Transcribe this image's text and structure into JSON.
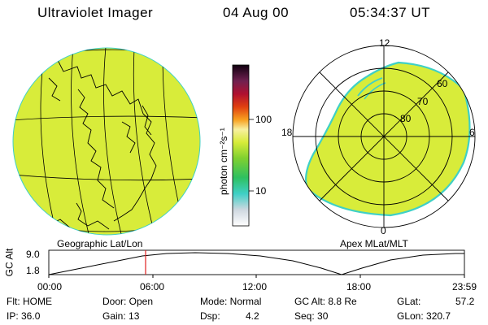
{
  "header": {
    "title": "Ultraviolet Imager",
    "date": "04 Aug 00",
    "time": "05:34:37 UT"
  },
  "colorbar": {
    "label": "photon cm⁻²s⁻¹",
    "tick_100": "100",
    "tick_10": "10"
  },
  "geo_panel": {
    "label": "Geographic Lat/Lon"
  },
  "polar_panel": {
    "label": "Apex MLat/MLT",
    "mlt_12": "12",
    "mlt_18": "18",
    "mlt_6": "6",
    "mlt_0": "0",
    "lat_60": "60",
    "lat_70": "70",
    "lat_80": "80"
  },
  "alt_plot": {
    "ylabel": "GC Alt",
    "y_top": "9.0",
    "y_bot": "1.8",
    "x_ticks": [
      "00:00",
      "06:00",
      "12:00",
      "18:00",
      "23:59"
    ],
    "marker_time": "05:34:37"
  },
  "status": {
    "flt": "Flt: HOME",
    "ip": "IP: 36.0",
    "door": "Door: Open",
    "gain": "Gain: 13",
    "mode": "Mode: Normal",
    "dsp": "Dsp:",
    "dsp_val": "4.2",
    "gcalt": "GC Alt: 8.8 Re",
    "seq": "Seq: 30",
    "glat": "GLat:",
    "glat_val": "57.2",
    "glon": "GLon: 320.7"
  },
  "colors": {
    "fill": "#d8ec3a",
    "accent_cyan": "#3fd0c6",
    "marker": "#e02020"
  }
}
